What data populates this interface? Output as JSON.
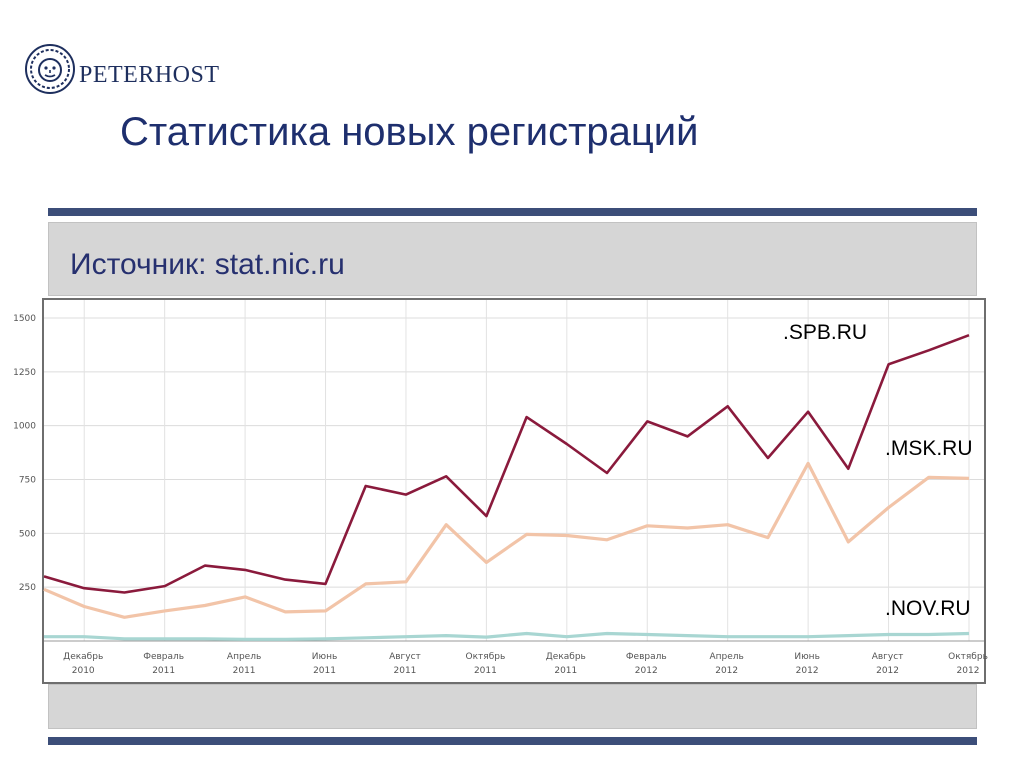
{
  "brand": {
    "name": "PETERHOST"
  },
  "title": "Статистика новых регистраций",
  "source_label": "Источник: stat.nic.ru",
  "colors": {
    "spb": "#8a1a3c",
    "msk": "#f2c4a8",
    "nov": "#a8d6d2",
    "rule": "#3c4e79",
    "title": "#1e2f6e"
  },
  "chart_data": {
    "type": "line",
    "title": "",
    "xlabel": "",
    "ylabel": "",
    "ylim": [
      0,
      1500
    ],
    "y_ticks": [
      250,
      500,
      750,
      1000,
      1250,
      1500
    ],
    "grid": true,
    "x_tick_labels": [
      [
        "Декабрь",
        "2010"
      ],
      [
        "Февраль",
        "2011"
      ],
      [
        "Апрель",
        "2011"
      ],
      [
        "Июнь",
        "2011"
      ],
      [
        "Август",
        "2011"
      ],
      [
        "Октябрь",
        "2011"
      ],
      [
        "Декабрь",
        "2011"
      ],
      [
        "Февраль",
        "2012"
      ],
      [
        "Апрель",
        "2012"
      ],
      [
        "Июнь",
        "2012"
      ],
      [
        "Август",
        "2012"
      ],
      [
        "Октябрь",
        "2012"
      ]
    ],
    "x": [
      "2010-11",
      "2010-12",
      "2011-01",
      "2011-02",
      "2011-03",
      "2011-04",
      "2011-05",
      "2011-06",
      "2011-07",
      "2011-08",
      "2011-09",
      "2011-10",
      "2011-11",
      "2011-12",
      "2012-01",
      "2012-02",
      "2012-03",
      "2012-04",
      "2012-05",
      "2012-06",
      "2012-07",
      "2012-08",
      "2012-09",
      "2012-10"
    ],
    "series": [
      {
        "name": ".SPB.RU",
        "values": [
          300,
          245,
          225,
          255,
          350,
          330,
          285,
          265,
          720,
          680,
          765,
          580,
          1040,
          915,
          780,
          1020,
          950,
          1090,
          850,
          1065,
          800,
          1285,
          1350,
          1420
        ]
      },
      {
        "name": ".MSK.RU",
        "values": [
          240,
          160,
          110,
          140,
          165,
          205,
          135,
          140,
          265,
          275,
          540,
          365,
          495,
          490,
          470,
          535,
          525,
          540,
          480,
          825,
          460,
          620,
          760,
          755
        ]
      },
      {
        "name": ".NOV.RU",
        "values": [
          20,
          20,
          10,
          10,
          10,
          8,
          8,
          10,
          15,
          20,
          25,
          18,
          35,
          20,
          35,
          30,
          25,
          20,
          20,
          20,
          25,
          30,
          30,
          35
        ]
      }
    ]
  }
}
